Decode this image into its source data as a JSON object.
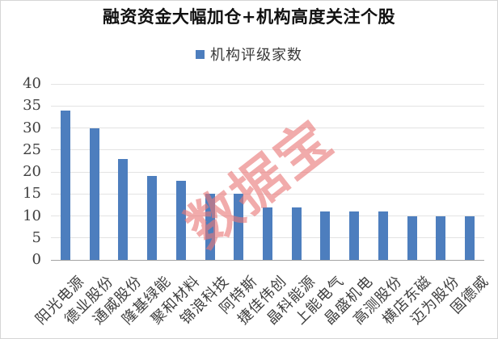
{
  "title": "融资资金大幅加仓+机构高度关注个股",
  "legend": {
    "label": "机构评级家数",
    "marker_color": "#4D7EBE"
  },
  "watermark": {
    "text": "数据宝",
    "color": "#E97878"
  },
  "colors": {
    "bar": "#4D7EBE",
    "gridline": "#E3E3E3",
    "axis_line": "#A3A3A3",
    "tick_text": "#3F3F3F",
    "title_text": "#111111",
    "border": "#D6D6D6",
    "background": "#FFFFFF"
  },
  "chart_data": {
    "type": "bar",
    "title": "融资资金大幅加仓+机构高度关注个股",
    "series_name": "机构评级家数",
    "categories": [
      "阳光电源",
      "德业股份",
      "通威股份",
      "隆基绿能",
      "聚和材料",
      "锦浪科技",
      "阿特斯",
      "捷佳伟创",
      "晶科能源",
      "上能电气",
      "晶盛机电",
      "高测股份",
      "横店东磁",
      "迈为股份",
      "固德威"
    ],
    "values": [
      34,
      30,
      23,
      19,
      18,
      15,
      15,
      12,
      12,
      11,
      11,
      11,
      10,
      10,
      10
    ],
    "xlabel": "",
    "ylabel": "",
    "ylim": [
      0,
      40
    ],
    "ytick_step": 5,
    "grid": true,
    "legend_position": "top",
    "x_label_rotation_deg": 45
  }
}
